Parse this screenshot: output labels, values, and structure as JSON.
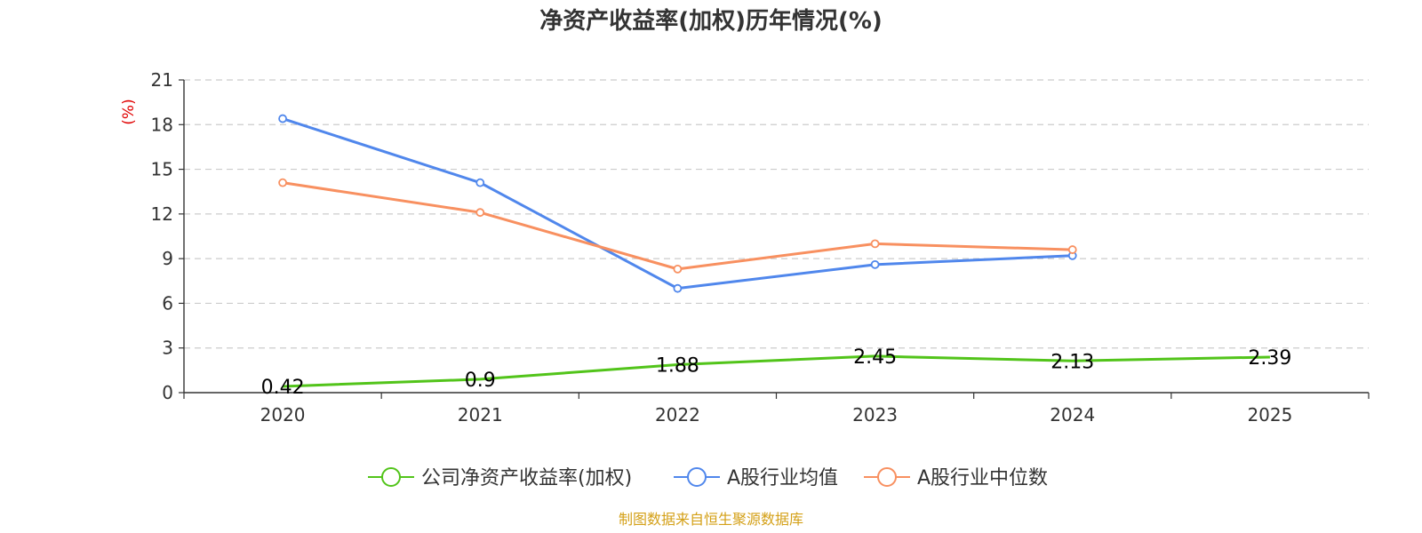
{
  "chart_data": {
    "type": "line",
    "title": "净资产收益率(加权)历年情况(%)",
    "ylabel": "(%)",
    "xlabel": "",
    "categories": [
      "2020",
      "2021",
      "2022",
      "2023",
      "2024",
      "2025"
    ],
    "ylim": [
      0,
      21
    ],
    "yticks": [
      "0",
      "3",
      "6",
      "9",
      "12",
      "15",
      "18",
      "21"
    ],
    "grid": true,
    "legend_position": "bottom",
    "series": [
      {
        "name": "公司净资产收益率(加权)",
        "color": "#52c41a",
        "values": [
          0.42,
          0.9,
          1.88,
          2.45,
          2.13,
          2.39
        ],
        "labels": [
          "0.42",
          "0.9",
          "1.88",
          "2.45",
          "2.13",
          "2.39"
        ]
      },
      {
        "name": "A股行业均值",
        "color": "#5087ec",
        "values": [
          18.4,
          14.1,
          7.0,
          8.6,
          9.2,
          null
        ]
      },
      {
        "name": "A股行业中位数",
        "color": "#f89060",
        "values": [
          14.1,
          12.1,
          8.3,
          10.0,
          9.6,
          null
        ]
      }
    ],
    "source": "制图数据来自恒生聚源数据库",
    "source_color": "#d4a017",
    "ylabel_color": "#e00000"
  }
}
